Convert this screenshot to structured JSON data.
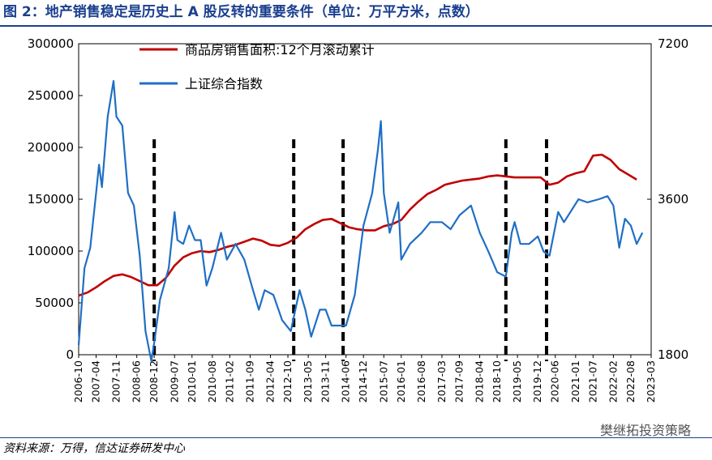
{
  "figure": {
    "title": "图 2：地产销售稳定是历史上 A 股反转的重要条件（单位：万平方米，点数）",
    "source": "资料来源：万得，信达证券研发中心",
    "watermark": "樊继拓投资策略"
  },
  "chart_data": {
    "type": "line",
    "x_start": "2006-10",
    "x_end": "2023-03",
    "x_tick_labels": [
      "2006-10",
      "2007-04",
      "2007-11",
      "2008-06",
      "2008-12",
      "2009-07",
      "2010-01",
      "2010-08",
      "2011-02",
      "2011-09",
      "2012-04",
      "2012-10",
      "2013-05",
      "2013-11",
      "2014-06",
      "2014-12",
      "2015-07",
      "2016-01",
      "2016-08",
      "2017-03",
      "2017-09",
      "2018-04",
      "2018-10",
      "2019-05",
      "2019-12",
      "2020-06",
      "2021-01",
      "2021-07",
      "2022-02",
      "2022-08",
      "2023-03"
    ],
    "y_left": {
      "min": 0,
      "max": 300000,
      "ticks": [
        0,
        50000,
        100000,
        150000,
        200000,
        250000,
        300000
      ]
    },
    "y_right": {
      "min": 1800,
      "max": 7200,
      "ticks": [
        1800,
        3600,
        7200
      ],
      "scale": "log"
    },
    "legend_position": "top-left",
    "grid": false,
    "series": [
      {
        "name": "商品房销售面积:12个月滚动累计",
        "axis": "left",
        "color": "#c00000",
        "points": [
          [
            "2006-10",
            57000
          ],
          [
            "2007-01",
            60000
          ],
          [
            "2007-04",
            65000
          ],
          [
            "2007-07",
            71000
          ],
          [
            "2007-10",
            76000
          ],
          [
            "2008-01",
            77500
          ],
          [
            "2008-04",
            75000
          ],
          [
            "2008-07",
            71000
          ],
          [
            "2008-10",
            67000
          ],
          [
            "2009-01",
            67000
          ],
          [
            "2009-04",
            74000
          ],
          [
            "2009-07",
            86000
          ],
          [
            "2009-10",
            94000
          ],
          [
            "2010-01",
            98000
          ],
          [
            "2010-04",
            100000
          ],
          [
            "2010-07",
            99000
          ],
          [
            "2010-10",
            101000
          ],
          [
            "2011-01",
            104000
          ],
          [
            "2011-04",
            106000
          ],
          [
            "2011-07",
            109000
          ],
          [
            "2011-10",
            112000
          ],
          [
            "2012-01",
            110000
          ],
          [
            "2012-04",
            106000
          ],
          [
            "2012-07",
            105000
          ],
          [
            "2012-10",
            108000
          ],
          [
            "2013-01",
            113000
          ],
          [
            "2013-04",
            121000
          ],
          [
            "2013-07",
            126000
          ],
          [
            "2013-10",
            130000
          ],
          [
            "2014-01",
            131000
          ],
          [
            "2014-04",
            127000
          ],
          [
            "2014-07",
            123000
          ],
          [
            "2014-10",
            121000
          ],
          [
            "2015-01",
            120000
          ],
          [
            "2015-04",
            120000
          ],
          [
            "2015-07",
            124000
          ],
          [
            "2015-10",
            126000
          ],
          [
            "2016-01",
            130000
          ],
          [
            "2016-04",
            140000
          ],
          [
            "2016-07",
            148000
          ],
          [
            "2016-10",
            155000
          ],
          [
            "2017-01",
            159000
          ],
          [
            "2017-04",
            164000
          ],
          [
            "2017-07",
            166000
          ],
          [
            "2017-10",
            168000
          ],
          [
            "2018-01",
            169000
          ],
          [
            "2018-04",
            170000
          ],
          [
            "2018-07",
            172000
          ],
          [
            "2018-10",
            173000
          ],
          [
            "2019-01",
            172000
          ],
          [
            "2019-04",
            171000
          ],
          [
            "2019-07",
            171000
          ],
          [
            "2019-10",
            171000
          ],
          [
            "2020-01",
            171000
          ],
          [
            "2020-04",
            164000
          ],
          [
            "2020-07",
            166000
          ],
          [
            "2020-10",
            172000
          ],
          [
            "2021-01",
            175000
          ],
          [
            "2021-04",
            177000
          ],
          [
            "2021-07",
            192000
          ],
          [
            "2021-10",
            193000
          ],
          [
            "2022-01",
            188000
          ],
          [
            "2022-04",
            179000
          ],
          [
            "2022-07",
            174000
          ],
          [
            "2022-10",
            169000
          ]
        ]
      },
      {
        "name": "上证综合指数",
        "axis": "right",
        "color": "#1f6fc5",
        "points": [
          [
            "2006-10",
            1880
          ],
          [
            "2006-12",
            2650
          ],
          [
            "2007-02",
            2900
          ],
          [
            "2007-04",
            3700
          ],
          [
            "2007-05",
            4200
          ],
          [
            "2007-06",
            3800
          ],
          [
            "2007-08",
            5200
          ],
          [
            "2007-10",
            6100
          ],
          [
            "2007-11",
            5200
          ],
          [
            "2008-01",
            5000
          ],
          [
            "2008-03",
            3700
          ],
          [
            "2008-05",
            3500
          ],
          [
            "2008-07",
            2800
          ],
          [
            "2008-09",
            2000
          ],
          [
            "2008-11",
            1750
          ],
          [
            "2008-12",
            1900
          ],
          [
            "2009-02",
            2300
          ],
          [
            "2009-05",
            2650
          ],
          [
            "2009-07",
            3400
          ],
          [
            "2009-08",
            3000
          ],
          [
            "2009-10",
            2950
          ],
          [
            "2009-12",
            3200
          ],
          [
            "2010-02",
            3000
          ],
          [
            "2010-04",
            3000
          ],
          [
            "2010-06",
            2450
          ],
          [
            "2010-08",
            2650
          ],
          [
            "2010-11",
            3100
          ],
          [
            "2011-01",
            2750
          ],
          [
            "2011-04",
            2950
          ],
          [
            "2011-07",
            2750
          ],
          [
            "2011-10",
            2400
          ],
          [
            "2011-12",
            2200
          ],
          [
            "2012-02",
            2400
          ],
          [
            "2012-05",
            2350
          ],
          [
            "2012-08",
            2100
          ],
          [
            "2012-11",
            2000
          ],
          [
            "2013-02",
            2400
          ],
          [
            "2013-04",
            2200
          ],
          [
            "2013-06",
            1950
          ],
          [
            "2013-09",
            2200
          ],
          [
            "2013-11",
            2200
          ],
          [
            "2014-01",
            2050
          ],
          [
            "2014-04",
            2050
          ],
          [
            "2014-06",
            2050
          ],
          [
            "2014-09",
            2350
          ],
          [
            "2014-12",
            3200
          ],
          [
            "2015-03",
            3700
          ],
          [
            "2015-05",
            4500
          ],
          [
            "2015-06",
            5100
          ],
          [
            "2015-07",
            3700
          ],
          [
            "2015-09",
            3100
          ],
          [
            "2015-12",
            3550
          ],
          [
            "2016-01",
            2750
          ],
          [
            "2016-04",
            2950
          ],
          [
            "2016-08",
            3100
          ],
          [
            "2016-11",
            3250
          ],
          [
            "2017-03",
            3250
          ],
          [
            "2017-06",
            3150
          ],
          [
            "2017-09",
            3350
          ],
          [
            "2018-01",
            3500
          ],
          [
            "2018-04",
            3100
          ],
          [
            "2018-07",
            2850
          ],
          [
            "2018-10",
            2600
          ],
          [
            "2019-01",
            2550
          ],
          [
            "2019-03",
            3100
          ],
          [
            "2019-04",
            3250
          ],
          [
            "2019-06",
            2950
          ],
          [
            "2019-09",
            2950
          ],
          [
            "2019-12",
            3050
          ],
          [
            "2020-02",
            2850
          ],
          [
            "2020-04",
            2800
          ],
          [
            "2020-07",
            3400
          ],
          [
            "2020-09",
            3250
          ],
          [
            "2021-02",
            3600
          ],
          [
            "2021-05",
            3550
          ],
          [
            "2021-09",
            3600
          ],
          [
            "2021-12",
            3650
          ],
          [
            "2022-02",
            3500
          ],
          [
            "2022-04",
            2900
          ],
          [
            "2022-06",
            3300
          ],
          [
            "2022-08",
            3200
          ],
          [
            "2022-10",
            2950
          ],
          [
            "2022-12",
            3100
          ]
        ]
      }
    ],
    "vertical_markers": [
      "2008-12",
      "2012-12",
      "2014-05",
      "2019-01",
      "2020-03"
    ]
  }
}
